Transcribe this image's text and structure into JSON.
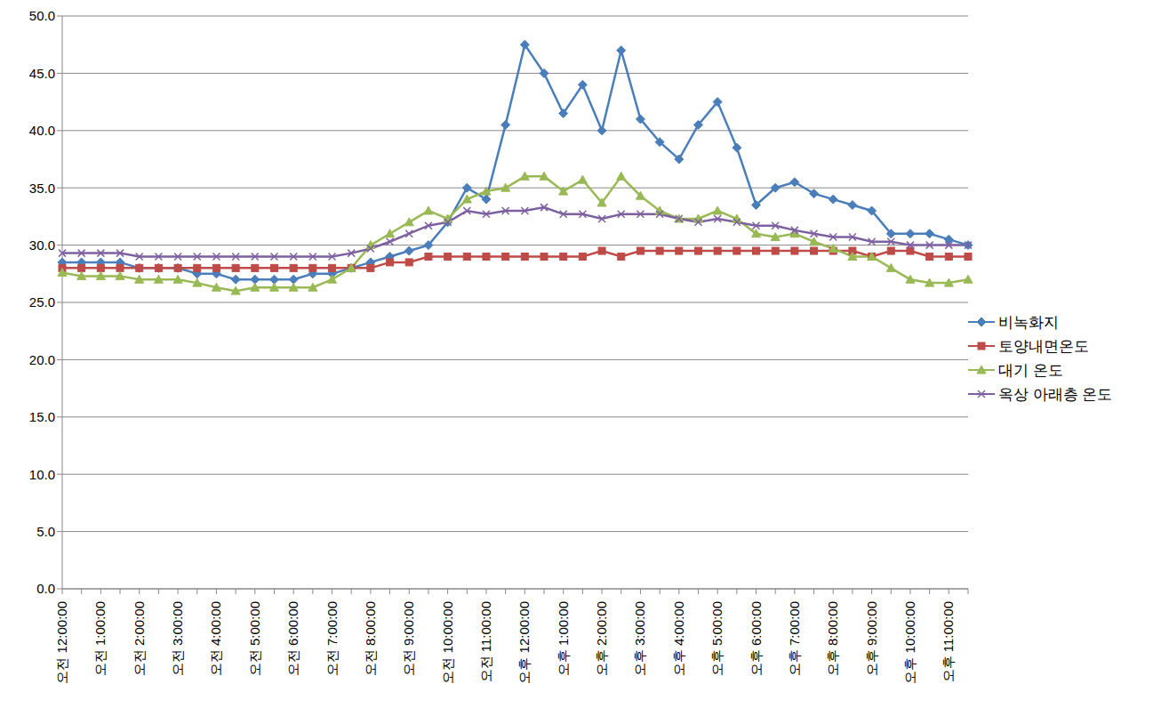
{
  "chart_data": {
    "type": "line",
    "categories": [
      "오전 12:00:00",
      null,
      "오전 1:00:00",
      null,
      "오전 2:00:00",
      null,
      "오전 3:00:00",
      null,
      "오전 4:00:00",
      null,
      "오전 5:00:00",
      null,
      "오전 6:00:00",
      null,
      "오전 7:00:00",
      null,
      "오전 8:00:00",
      null,
      "오전 9:00:00",
      null,
      "오전 10:00:00",
      null,
      "오전 11:00:00",
      null,
      "오후 12:00:00",
      null,
      "오후 1:00:00",
      null,
      "오후 2:00:00",
      null,
      "오후 3:00:00",
      null,
      "오후 4:00:00",
      null,
      "오후 5:00:00",
      null,
      "오후 6:00:00",
      null,
      "오후 7:00:00",
      null,
      "오후 8:00:00",
      null,
      "오후 9:00:00",
      null,
      "오후 10:00:00",
      null,
      "오후 11:00:00",
      null
    ],
    "series": [
      {
        "name": "비녹화지",
        "color": "#4a7ebb",
        "marker": "diamond",
        "values": [
          28.5,
          28.5,
          28.5,
          28.5,
          28.0,
          28.0,
          28.0,
          27.5,
          27.5,
          27.0,
          27.0,
          27.0,
          27.0,
          27.5,
          27.5,
          28.0,
          28.5,
          29.0,
          29.5,
          30.0,
          32.0,
          35.0,
          34.0,
          40.5,
          47.5,
          45.0,
          41.5,
          44.0,
          40.0,
          47.0,
          41.0,
          39.0,
          37.5,
          40.5,
          42.5,
          38.5,
          33.5,
          35.0,
          35.5,
          34.5,
          34.0,
          33.5,
          33.0,
          31.0,
          31.0,
          31.0,
          30.5,
          30.0
        ]
      },
      {
        "name": "토양내면온도",
        "color": "#be4b48",
        "marker": "square",
        "values": [
          28.0,
          28.0,
          28.0,
          28.0,
          28.0,
          28.0,
          28.0,
          28.0,
          28.0,
          28.0,
          28.0,
          28.0,
          28.0,
          28.0,
          28.0,
          28.0,
          28.0,
          28.5,
          28.5,
          29.0,
          29.0,
          29.0,
          29.0,
          29.0,
          29.0,
          29.0,
          29.0,
          29.0,
          29.5,
          29.0,
          29.5,
          29.5,
          29.5,
          29.5,
          29.5,
          29.5,
          29.5,
          29.5,
          29.5,
          29.5,
          29.5,
          29.5,
          29.0,
          29.5,
          29.5,
          29.0,
          29.0,
          29.0
        ]
      },
      {
        "name": "대기 온도",
        "color": "#98b954",
        "marker": "triangle",
        "values": [
          27.6,
          27.3,
          27.3,
          27.3,
          27.0,
          27.0,
          27.0,
          26.7,
          26.3,
          26.0,
          26.3,
          26.3,
          26.3,
          26.3,
          27.0,
          28.0,
          30.0,
          31.0,
          32.0,
          33.0,
          32.3,
          34.0,
          34.7,
          35.0,
          36.0,
          36.0,
          34.7,
          35.7,
          33.7,
          36.0,
          34.3,
          33.0,
          32.3,
          32.3,
          33.0,
          32.3,
          31.0,
          30.7,
          31.0,
          30.3,
          29.7,
          29.0,
          29.0,
          28.0,
          27.0,
          26.7,
          26.7,
          27.0
        ]
      },
      {
        "name": "옥상 아래층 온도",
        "color": "#7d60a0",
        "marker": "x",
        "values": [
          29.3,
          29.3,
          29.3,
          29.3,
          29.0,
          29.0,
          29.0,
          29.0,
          29.0,
          29.0,
          29.0,
          29.0,
          29.0,
          29.0,
          29.0,
          29.3,
          29.7,
          30.3,
          31.0,
          31.7,
          32.0,
          33.0,
          32.7,
          33.0,
          33.0,
          33.3,
          32.7,
          32.7,
          32.3,
          32.7,
          32.7,
          32.7,
          32.3,
          32.0,
          32.3,
          32.0,
          31.7,
          31.7,
          31.3,
          31.0,
          30.7,
          30.7,
          30.3,
          30.3,
          30.0,
          30.0,
          30.0,
          30.0
        ]
      }
    ],
    "ylim": [
      0,
      50
    ],
    "yticks": [
      {
        "value": 0,
        "label": "0.0"
      },
      {
        "value": 5,
        "label": "5.0"
      },
      {
        "value": 10,
        "label": "10.0"
      },
      {
        "value": 15,
        "label": "15.0"
      },
      {
        "value": 20,
        "label": "20.0"
      },
      {
        "value": 25,
        "label": "25.0"
      },
      {
        "value": 30,
        "label": "30.0"
      },
      {
        "value": 35,
        "label": "35.0"
      },
      {
        "value": 40,
        "label": "40.0"
      },
      {
        "value": 45,
        "label": "45.0"
      },
      {
        "value": 50,
        "label": "50.0"
      }
    ],
    "grid": true,
    "legend": "right"
  }
}
